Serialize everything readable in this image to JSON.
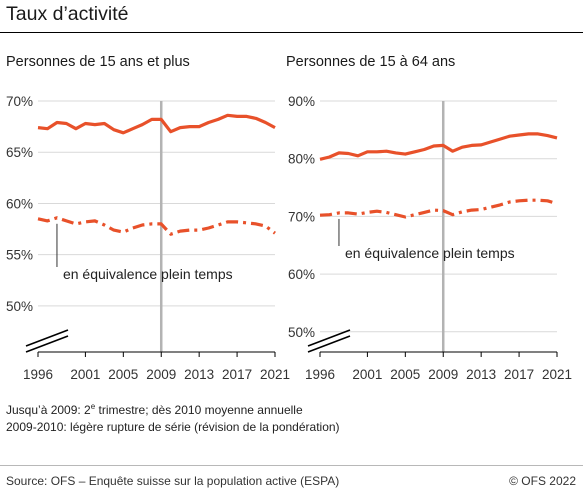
{
  "title": "Taux d’activité",
  "notes": [
    "Jusqu’à 2009: 2e trimestre; dès 2010 moyenne annuelle",
    "2009-2010: légère rupture de série (révision de la pondération)"
  ],
  "source": "Source: OFS – Enquête suisse sur la population active (ESPA)",
  "copyright": "© OFS 2022",
  "colors": {
    "series": "#e8512a",
    "grid": "#d9d9d9",
    "break_line": "#b3b3b3",
    "axis": "#000000"
  },
  "chart_data": [
    {
      "type": "line",
      "title": "Personnes de 15 ans et plus",
      "x_ticks": [
        "1996",
        "2001",
        "2005",
        "2009",
        "2013",
        "2017",
        "2021"
      ],
      "y_ticks": [
        "70%",
        "65%",
        "60%",
        "55%",
        "50%"
      ],
      "y_tick_values": [
        70,
        65,
        60,
        55,
        50
      ],
      "ylim": [
        45.5,
        70
      ],
      "xlim": [
        1996,
        2021
      ],
      "axis_break": true,
      "series_break_after": 2009,
      "annotation": "en équivalence plein temps",
      "annotation_year": 1998,
      "x": [
        1996,
        1997,
        1998,
        1999,
        2000,
        2001,
        2002,
        2003,
        2004,
        2005,
        2006,
        2007,
        2008,
        2009,
        2010,
        2011,
        2012,
        2013,
        2014,
        2015,
        2016,
        2017,
        2018,
        2019,
        2020,
        2021
      ],
      "series": [
        {
          "style": "solid",
          "values": [
            67.4,
            67.3,
            67.9,
            67.8,
            67.3,
            67.8,
            67.7,
            67.8,
            67.2,
            66.9,
            67.3,
            67.7,
            68.2,
            68.2,
            67.0,
            67.4,
            67.5,
            67.5,
            67.9,
            68.2,
            68.6,
            68.5,
            68.5,
            68.3,
            67.9,
            67.4
          ]
        },
        {
          "style": "dashdot",
          "values": [
            58.5,
            58.3,
            58.6,
            58.3,
            58.0,
            58.2,
            58.3,
            57.9,
            57.4,
            57.2,
            57.6,
            57.9,
            58.0,
            58.0,
            57.0,
            57.3,
            57.4,
            57.4,
            57.6,
            57.9,
            58.2,
            58.2,
            58.1,
            58.0,
            57.8,
            57.1
          ]
        }
      ]
    },
    {
      "type": "line",
      "title": "Personnes de 15 à 64 ans",
      "x_ticks": [
        "1996",
        "2001",
        "2005",
        "2009",
        "2013",
        "2017",
        "2021"
      ],
      "y_ticks": [
        "90%",
        "80%",
        "70%",
        "60%",
        "50%"
      ],
      "y_tick_values": [
        90,
        80,
        70,
        60,
        50
      ],
      "ylim": [
        46.5,
        90
      ],
      "xlim": [
        1996,
        2021
      ],
      "axis_break": true,
      "series_break_after": 2009,
      "annotation": "en équivalence plein temps",
      "annotation_year": 1998,
      "x": [
        1996,
        1997,
        1998,
        1999,
        2000,
        2001,
        2002,
        2003,
        2004,
        2005,
        2006,
        2007,
        2008,
        2009,
        2010,
        2011,
        2012,
        2013,
        2014,
        2015,
        2016,
        2017,
        2018,
        2019,
        2020,
        2021
      ],
      "series": [
        {
          "style": "solid",
          "values": [
            79.9,
            80.3,
            81.0,
            80.9,
            80.5,
            81.2,
            81.2,
            81.3,
            81.0,
            80.8,
            81.2,
            81.6,
            82.2,
            82.3,
            81.3,
            82.0,
            82.3,
            82.4,
            82.9,
            83.4,
            83.9,
            84.1,
            84.3,
            84.3,
            84.0,
            83.6
          ]
        },
        {
          "style": "dashdot",
          "values": [
            70.2,
            70.3,
            70.6,
            70.6,
            70.4,
            70.7,
            70.9,
            70.7,
            70.3,
            69.9,
            70.3,
            70.7,
            71.1,
            71.0,
            70.3,
            70.8,
            71.1,
            71.2,
            71.6,
            72.0,
            72.5,
            72.7,
            72.8,
            72.8,
            72.7,
            72.2
          ]
        }
      ]
    }
  ]
}
